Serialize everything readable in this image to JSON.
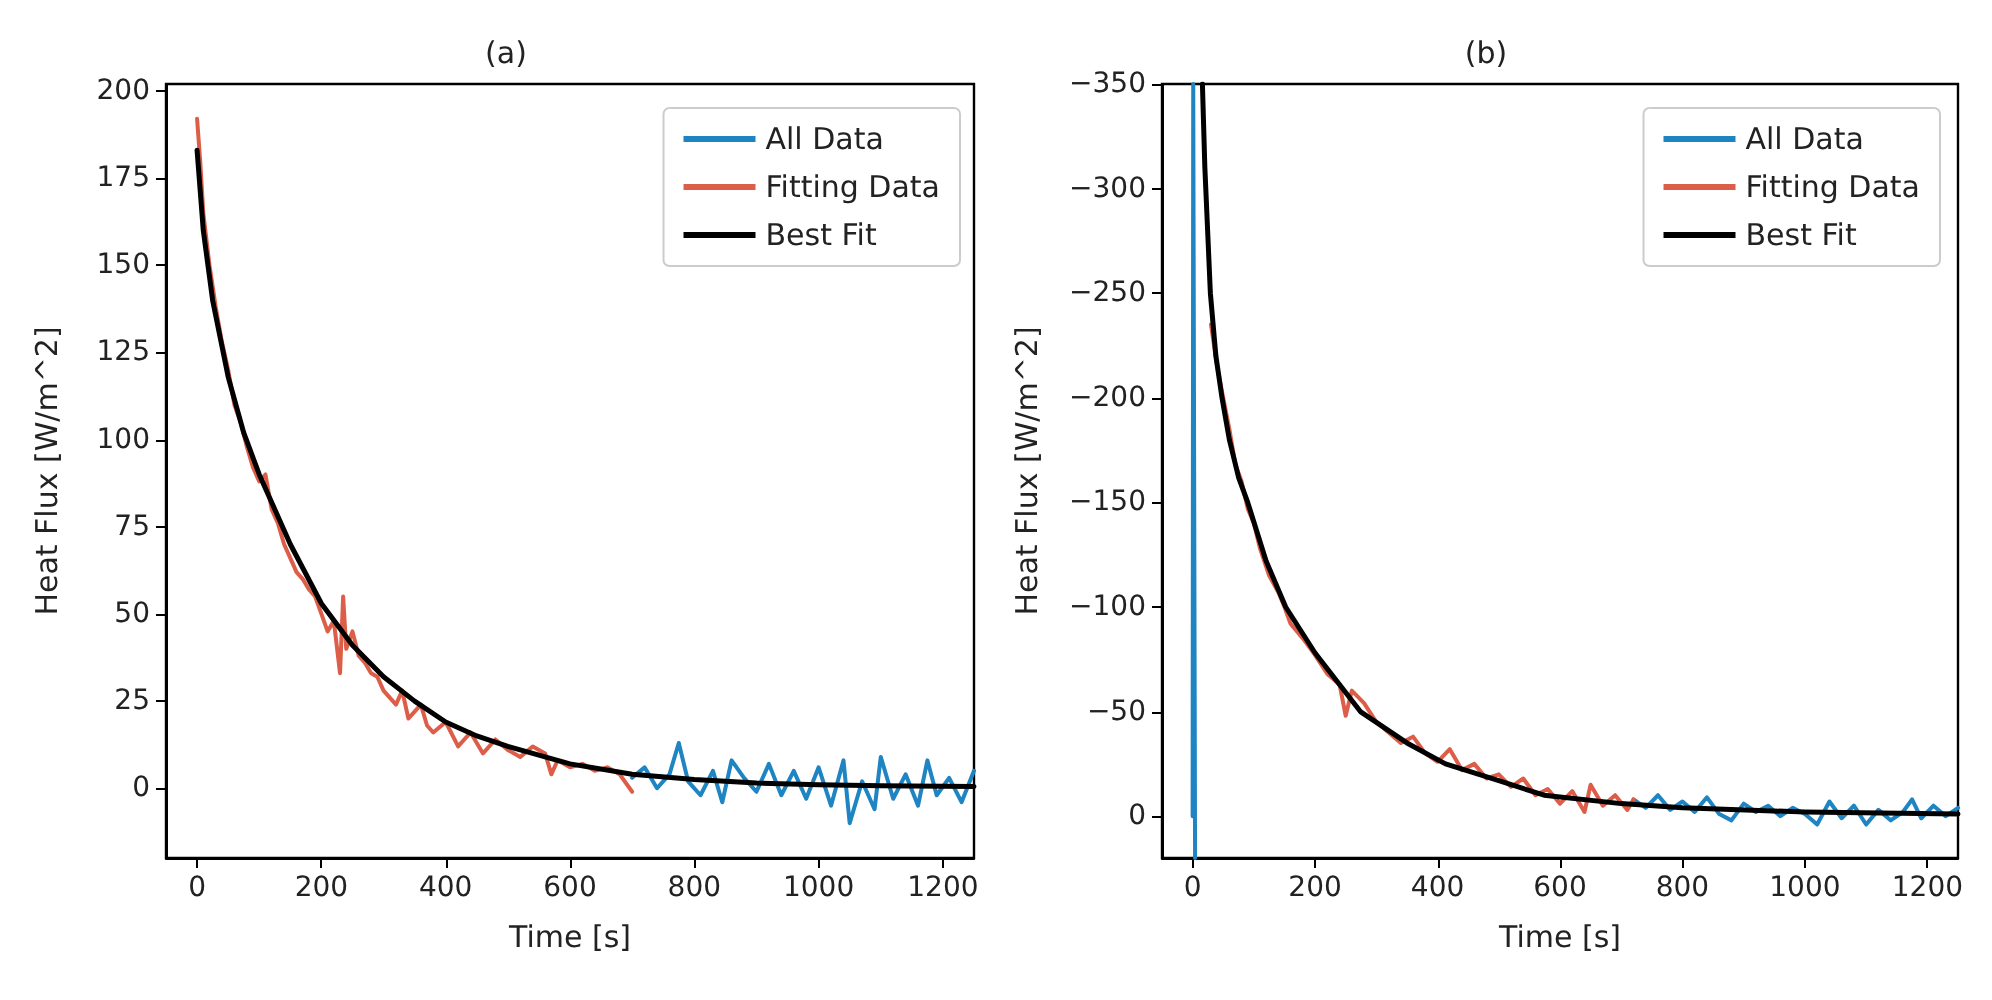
{
  "chart_data": [
    {
      "type": "line",
      "title": "(a)",
      "xlabel": "Time [s]",
      "ylabel": "Heat Flux [W/m^2]",
      "xlim": [
        -50,
        1250
      ],
      "ylim": [
        -20,
        202
      ],
      "xticks": [
        0,
        200,
        400,
        600,
        800,
        1000,
        1200
      ],
      "yticks": [
        0,
        25,
        50,
        75,
        100,
        125,
        150,
        175,
        200
      ],
      "grid": false,
      "legend": "top right",
      "series": [
        {
          "name": "All Data",
          "color": "#1f84c2",
          "x": [
            700,
            720,
            740,
            760,
            775,
            790,
            810,
            830,
            845,
            860,
            880,
            900,
            920,
            940,
            960,
            980,
            1000,
            1020,
            1040,
            1050,
            1070,
            1090,
            1100,
            1120,
            1140,
            1160,
            1175,
            1190,
            1210,
            1230,
            1250
          ],
          "values": [
            3,
            6,
            0,
            4,
            13,
            2,
            -2,
            5,
            -4,
            8,
            3,
            -1,
            7,
            -2,
            5,
            -3,
            6,
            -5,
            8,
            -10,
            2,
            -6,
            9,
            -3,
            4,
            -5,
            8,
            -2,
            3,
            -4,
            5
          ]
        },
        {
          "name": "Fitting Data",
          "color": "#dd5e48",
          "x": [
            0,
            5,
            10,
            20,
            30,
            40,
            50,
            60,
            70,
            80,
            90,
            100,
            110,
            120,
            130,
            140,
            150,
            160,
            170,
            180,
            190,
            200,
            210,
            220,
            230,
            235,
            240,
            250,
            260,
            270,
            280,
            290,
            300,
            310,
            320,
            330,
            340,
            350,
            360,
            370,
            380,
            400,
            420,
            440,
            460,
            480,
            500,
            520,
            540,
            560,
            570,
            580,
            600,
            620,
            640,
            660,
            680,
            700
          ],
          "values": [
            192,
            180,
            165,
            150,
            138,
            128,
            120,
            110,
            105,
            98,
            92,
            88,
            90,
            80,
            76,
            70,
            66,
            62,
            60,
            57,
            55,
            50,
            45,
            48,
            33,
            55,
            40,
            45,
            38,
            36,
            33,
            32,
            28,
            26,
            24,
            28,
            20,
            22,
            24,
            18,
            16,
            19,
            12,
            16,
            10,
            14,
            11,
            9,
            12,
            10,
            4,
            8,
            6,
            7,
            5,
            6,
            4,
            -1
          ]
        },
        {
          "name": "Best Fit",
          "color": "#000000",
          "x": [
            0,
            10,
            25,
            50,
            75,
            100,
            150,
            200,
            250,
            300,
            350,
            400,
            450,
            500,
            600,
            700,
            800,
            900,
            1000,
            1100,
            1250
          ],
          "values": [
            183,
            160,
            140,
            118,
            102,
            90,
            70,
            53,
            41,
            32,
            25,
            19,
            15,
            12,
            7,
            4,
            2.5,
            1.5,
            1,
            0.7,
            0.5
          ]
        }
      ]
    },
    {
      "type": "line",
      "title": "(b)",
      "xlabel": "Time [s]",
      "ylabel": "Heat Flux [W/m^2]",
      "xlim": [
        -50,
        1250
      ],
      "ylim": [
        20,
        -350
      ],
      "xticks": [
        0,
        200,
        400,
        600,
        800,
        1000,
        1200
      ],
      "yticks": [
        -350,
        -300,
        -250,
        -200,
        -150,
        -100,
        -50,
        0
      ],
      "grid": false,
      "legend": "top right",
      "series": [
        {
          "name": "All Data",
          "color": "#1f84c2",
          "x": [
            0,
            1,
            3,
            4,
            5,
            720,
            740,
            760,
            780,
            800,
            820,
            840,
            860,
            880,
            900,
            920,
            940,
            960,
            980,
            1000,
            1020,
            1040,
            1060,
            1080,
            1100,
            1120,
            1140,
            1160,
            1175,
            1190,
            1210,
            1230,
            1250
          ],
          "values": [
            0,
            -350,
            -350,
            20,
            null,
            -8,
            -4,
            -10,
            -3,
            -7,
            -2,
            -9,
            -1,
            2,
            -6,
            -2,
            -5,
            0,
            -4,
            -1,
            4,
            -7,
            1,
            -5,
            4,
            -3,
            2,
            -2,
            -8,
            1,
            -5,
            0,
            -4
          ]
        },
        {
          "name": "Fitting Data",
          "color": "#dd5e48",
          "x": [
            30,
            40,
            50,
            60,
            70,
            80,
            90,
            100,
            110,
            125,
            140,
            150,
            160,
            180,
            200,
            220,
            240,
            250,
            260,
            280,
            300,
            320,
            340,
            360,
            380,
            400,
            420,
            440,
            460,
            480,
            500,
            520,
            540,
            560,
            580,
            600,
            620,
            640,
            650,
            670,
            690,
            710,
            720
          ],
          "values": [
            -235,
            -215,
            -200,
            -185,
            -168,
            -160,
            -147,
            -140,
            -128,
            -115,
            -107,
            -100,
            -92,
            -85,
            -77,
            -68,
            -63,
            -48,
            -60,
            -54,
            -45,
            -40,
            -35,
            -38,
            -30,
            -26,
            -32,
            -22,
            -25,
            -18,
            -20,
            -14,
            -18,
            -10,
            -13,
            -6,
            -12,
            -2,
            -15,
            -5,
            -10,
            -3,
            -8
          ]
        },
        {
          "name": "Best Fit",
          "color": "#000000",
          "x": [
            16,
            20,
            29,
            38,
            48,
            60,
            75,
            90,
            120,
            152,
            200,
            274,
            350,
            413,
            500,
            574,
            700,
            800,
            1000,
            1250
          ],
          "values": [
            -350,
            -310,
            -250,
            -220,
            -200,
            -180,
            -162,
            -150,
            -122,
            -100,
            -78,
            -50,
            -35,
            -25,
            -17,
            -10,
            -6,
            -4,
            -2,
            -1
          ]
        }
      ]
    }
  ]
}
